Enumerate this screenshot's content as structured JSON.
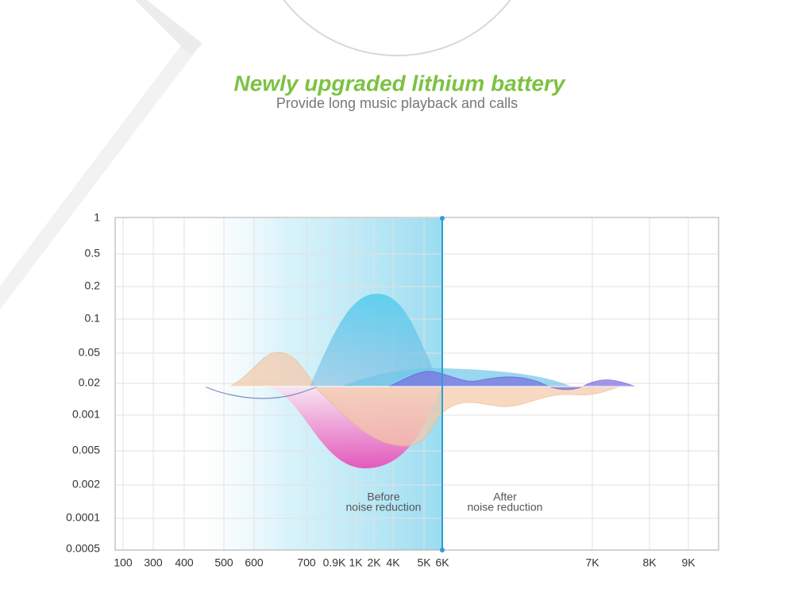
{
  "header": {
    "title": "Newly upgraded lithium battery",
    "subtitle": "Provide long music playback and calls"
  },
  "graph": {
    "y_labels": [
      "1",
      "0.5",
      "0.2",
      "0.1",
      "0.05",
      "0.02",
      "0.001",
      "0.005",
      "0.002",
      "0.0001",
      "0.0005"
    ],
    "x_labels": [
      "100",
      "300",
      "400",
      "500",
      "600",
      "700",
      "0.9K",
      "1K",
      "2K",
      "4K",
      "5K",
      "6K",
      "7K",
      "8K",
      "9K"
    ],
    "annotations": [
      [
        "Before",
        "noise reduction"
      ],
      [
        "After",
        "noise reduction"
      ]
    ]
  }
}
